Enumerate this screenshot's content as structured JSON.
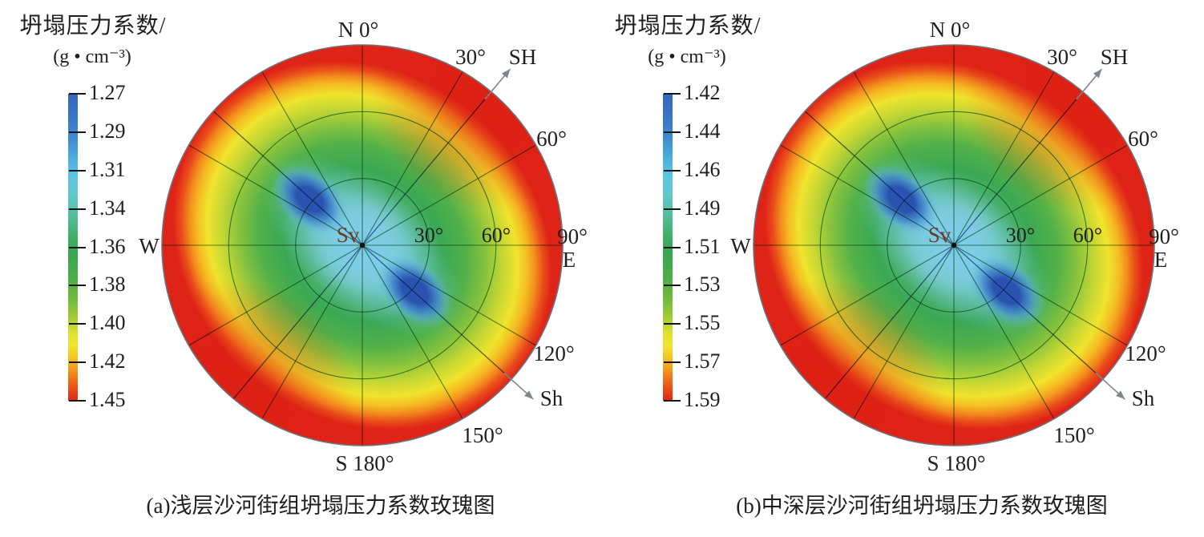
{
  "shared": {
    "legend_title_line1": "坍塌压力系数/",
    "legend_title_line2": "(g • cm⁻³)",
    "plot_labels": {
      "north": "N 0°",
      "deg30": "30°",
      "sh_max": "SH",
      "deg60": "60°",
      "deg90": "90°",
      "east": "E",
      "deg120": "120°",
      "sh_min": "Sh",
      "deg150": "150°",
      "south": "S 180°",
      "west": "W",
      "ring30": "30°",
      "ring60": "60°",
      "center": "Sv"
    }
  },
  "panels": [
    {
      "caption": "(a)浅层沙河街组坍塌压力系数玫瑰图",
      "colorbar_ticks": [
        "1.27",
        "1.29",
        "1.31",
        "1.34",
        "1.36",
        "1.38",
        "1.40",
        "1.42",
        "1.45"
      ]
    },
    {
      "caption": "(b)中深层沙河街组坍塌压力系数玫瑰图",
      "colorbar_ticks": [
        "1.42",
        "1.44",
        "1.46",
        "1.49",
        "1.51",
        "1.53",
        "1.55",
        "1.57",
        "1.59"
      ]
    }
  ],
  "colors": {
    "colorbar_stops": [
      [
        0,
        "#3566bc"
      ],
      [
        0.09,
        "#3b79c9"
      ],
      [
        0.15,
        "#3f8fd2"
      ],
      [
        0.22,
        "#4fb3de"
      ],
      [
        0.27,
        "#5ec5e4"
      ],
      [
        0.33,
        "#62c8cc"
      ],
      [
        0.4,
        "#53bd9b"
      ],
      [
        0.47,
        "#40ad62"
      ],
      [
        0.52,
        "#38a751"
      ],
      [
        0.6,
        "#4cae46"
      ],
      [
        0.67,
        "#71ba3d"
      ],
      [
        0.73,
        "#a4cc35"
      ],
      [
        0.78,
        "#dfe130"
      ],
      [
        0.82,
        "#f2e52c"
      ],
      [
        0.86,
        "#f4c525"
      ],
      [
        0.9,
        "#f1961e"
      ],
      [
        0.94,
        "#ec6419"
      ],
      [
        1,
        "#e22418"
      ]
    ],
    "field_stops": [
      [
        0,
        "#83cce8"
      ],
      [
        0.1,
        "#85d0e2"
      ],
      [
        0.2,
        "#74c8b8"
      ],
      [
        0.3,
        "#4fb478"
      ],
      [
        0.42,
        "#3ba854"
      ],
      [
        0.55,
        "#52b149"
      ],
      [
        0.65,
        "#86c23e"
      ],
      [
        0.74,
        "#c3d634"
      ],
      [
        0.82,
        "#f0e42d"
      ],
      [
        0.875,
        "#f5ba22"
      ],
      [
        0.915,
        "#f28c1d"
      ],
      [
        0.955,
        "#ea4f1b"
      ],
      [
        1,
        "#de2417"
      ]
    ],
    "lobe_core": "#2a53b0",
    "lobe_mid": "#3f83cd",
    "lobe_edge": "#63b8e0",
    "cyan_band": "#7bcce8",
    "rim_boost_red": "#dc1f12",
    "sh_axis_line": "#33518f",
    "grid_green": "#1a7a4c",
    "radial_line": "#4a7a52",
    "outer_ring": "#6f737b",
    "arrow": "#80858f",
    "sv_label": "#6f3a22",
    "text": "#1f1f1f"
  },
  "chart_data": [
    {
      "type": "heatmap",
      "subtype": "polar-contour-rose",
      "title": "(a)浅层沙河街组坍塌压力系数玫瑰图",
      "colorbar": {
        "label": "坍塌压力系数/(g • cm⁻³)",
        "orientation": "vertical",
        "ticks": [
          1.27,
          1.29,
          1.31,
          1.34,
          1.36,
          1.38,
          1.4,
          1.42,
          1.45
        ],
        "top_color": "blue",
        "bottom_color": "red"
      },
      "angular_axis": {
        "labels": [
          "N 0°",
          "30°",
          "60°",
          "90° E",
          "120°",
          "150°",
          "S 180°",
          "W"
        ],
        "degrees": [
          0,
          30,
          60,
          90,
          120,
          150,
          180,
          270
        ],
        "gridline_step_deg": 30
      },
      "radial_axis": {
        "meaning": "well inclination from vertical (Sv at center)",
        "ring_ticks_deg": [
          30,
          60,
          90
        ]
      },
      "stress_directions": {
        "SH_azimuth_deg": 40,
        "Sh_azimuth_deg": 130,
        "Sv": "plot center"
      },
      "field_summary": {
        "value_range": [
          1.27,
          1.45
        ],
        "minima": "≈1.27 at inclination ≈30° toward azimuths 130°/310° (Sh direction, two blue lobes)",
        "maxima": "≈1.45 at high inclination near rim, strongest toward azimuths 40°/220° (SH direction)"
      }
    },
    {
      "type": "heatmap",
      "subtype": "polar-contour-rose",
      "title": "(b)中深层沙河街组坍塌压力系数玫瑰图",
      "colorbar": {
        "label": "坍塌压力系数/(g • cm⁻³)",
        "orientation": "vertical",
        "ticks": [
          1.42,
          1.44,
          1.46,
          1.49,
          1.51,
          1.53,
          1.55,
          1.57,
          1.59
        ],
        "top_color": "blue",
        "bottom_color": "red"
      },
      "angular_axis": {
        "labels": [
          "N 0°",
          "30°",
          "60°",
          "90° E",
          "120°",
          "150°",
          "S 180°",
          "W"
        ],
        "degrees": [
          0,
          30,
          60,
          90,
          120,
          150,
          180,
          270
        ],
        "gridline_step_deg": 30
      },
      "radial_axis": {
        "meaning": "well inclination from vertical (Sv at center)",
        "ring_ticks_deg": [
          30,
          60,
          90
        ]
      },
      "stress_directions": {
        "SH_azimuth_deg": 40,
        "Sh_azimuth_deg": 130,
        "Sv": "plot center"
      },
      "field_summary": {
        "value_range": [
          1.42,
          1.59
        ],
        "minima": "≈1.42 at inclination ≈30° toward azimuths 130°/310° (Sh direction, two blue lobes)",
        "maxima": "≈1.59 at high inclination near rim, strongest toward azimuths 40°/220° (SH direction)"
      }
    }
  ]
}
